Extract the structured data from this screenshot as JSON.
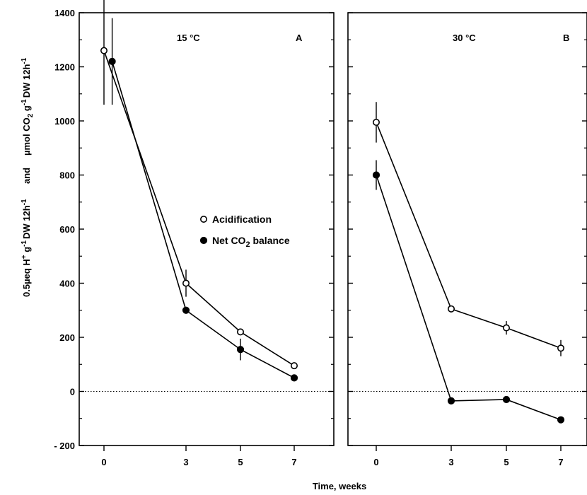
{
  "figure": {
    "xlabel": "Time, weeks",
    "ylabel_parts": {
      "left": [
        "0.5µeq H",
        "+",
        " g",
        "-1",
        "DW 12h",
        "-1"
      ],
      "and": "and",
      "right": [
        "µmol CO",
        "2",
        " g",
        "-1",
        "DW 12h",
        "-1"
      ]
    },
    "legend": {
      "acidification": "Acidification",
      "net_prefix": "Net CO",
      "net_sub": "2",
      "net_suffix": " balance"
    }
  },
  "chart_data": [
    {
      "type": "line",
      "panel_letter": "A",
      "temperature_label": "15 °C",
      "x_ticks": [
        0,
        3,
        5,
        7
      ],
      "y_ticks": [
        -200,
        0,
        200,
        400,
        600,
        800,
        1000,
        1200,
        1400
      ],
      "xlim": [
        -0.8,
        7.6
      ],
      "ylim": [
        -200,
        1400
      ],
      "zero_line": true,
      "legend_position": "middle-right",
      "series": [
        {
          "name": "Acidification",
          "marker": "open-circle",
          "x": [
            0,
            3,
            5,
            7
          ],
          "y": [
            1260,
            400,
            220,
            95
          ],
          "err": [
            200,
            50,
            0,
            0
          ]
        },
        {
          "name": "Net CO2 balance",
          "marker": "filled-circle",
          "x": [
            0.3,
            3,
            5,
            7
          ],
          "y": [
            1220,
            300,
            155,
            50
          ],
          "err": [
            160,
            0,
            40,
            0
          ]
        }
      ]
    },
    {
      "type": "line",
      "panel_letter": "B",
      "temperature_label": "30 °C",
      "x_ticks": [
        0,
        3,
        5,
        7
      ],
      "y_ticks": [
        -200,
        0,
        200,
        400,
        600,
        800,
        1000,
        1200,
        1400
      ],
      "xlim": [
        -0.8,
        7.6
      ],
      "ylim": [
        -200,
        1400
      ],
      "zero_line": true,
      "series": [
        {
          "name": "Acidification",
          "marker": "open-circle",
          "x": [
            0,
            3,
            5,
            7
          ],
          "y": [
            995,
            305,
            235,
            160
          ],
          "err": [
            75,
            0,
            25,
            30
          ]
        },
        {
          "name": "Net CO2 balance",
          "marker": "filled-circle",
          "x": [
            0,
            3,
            5,
            7
          ],
          "y": [
            800,
            -35,
            -30,
            -105
          ],
          "err": [
            55,
            0,
            0,
            0
          ]
        }
      ]
    }
  ]
}
